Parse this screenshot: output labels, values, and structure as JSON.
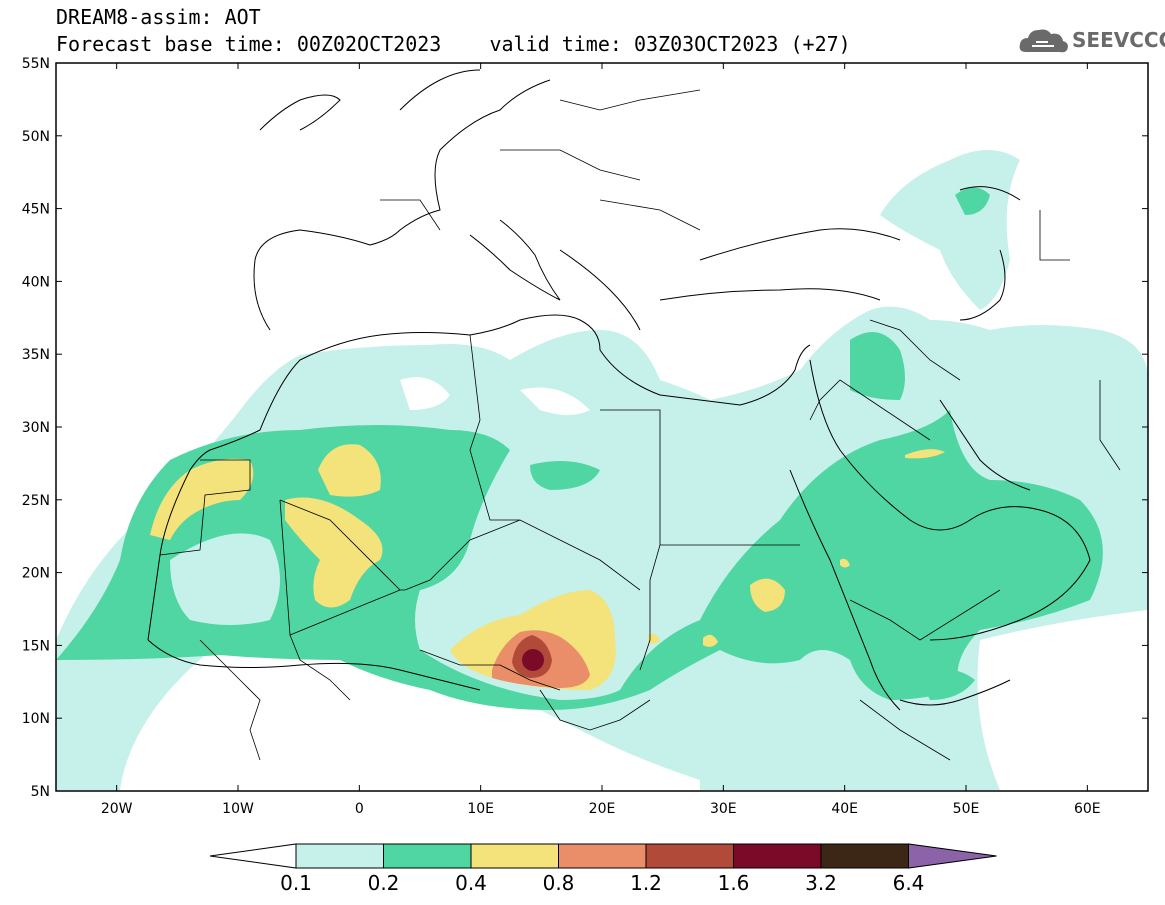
{
  "header": {
    "line1": "DREAM8-assim: AOT",
    "line2": "Forecast base time: 00Z02OCT2023    valid time: 03Z03OCT2023 (+27)"
  },
  "logo": {
    "text": "SEEVCCC",
    "icon": "cloud-icon"
  },
  "map": {
    "lat_ticks": [
      "55N",
      "50N",
      "45N",
      "40N",
      "35N",
      "30N",
      "25N",
      "20N",
      "15N",
      "10N",
      "5N"
    ],
    "lon_ticks": [
      "20W",
      "10W",
      "0",
      "10E",
      "20E",
      "30E",
      "40E",
      "50E",
      "60E"
    ],
    "lat_range": [
      5,
      55
    ],
    "lon_range": [
      -25,
      65
    ]
  },
  "colorbar": {
    "labels": [
      "0.1",
      "0.2",
      "0.4",
      "0.8",
      "1.2",
      "1.6",
      "3.2",
      "6.4"
    ],
    "colors": [
      "#ffffff",
      "#c6f0ea",
      "#4fd6a2",
      "#f4e27a",
      "#e98e68",
      "#b24a3a",
      "#7a0a28",
      "#3c2616",
      "#8c62a8"
    ]
  }
}
